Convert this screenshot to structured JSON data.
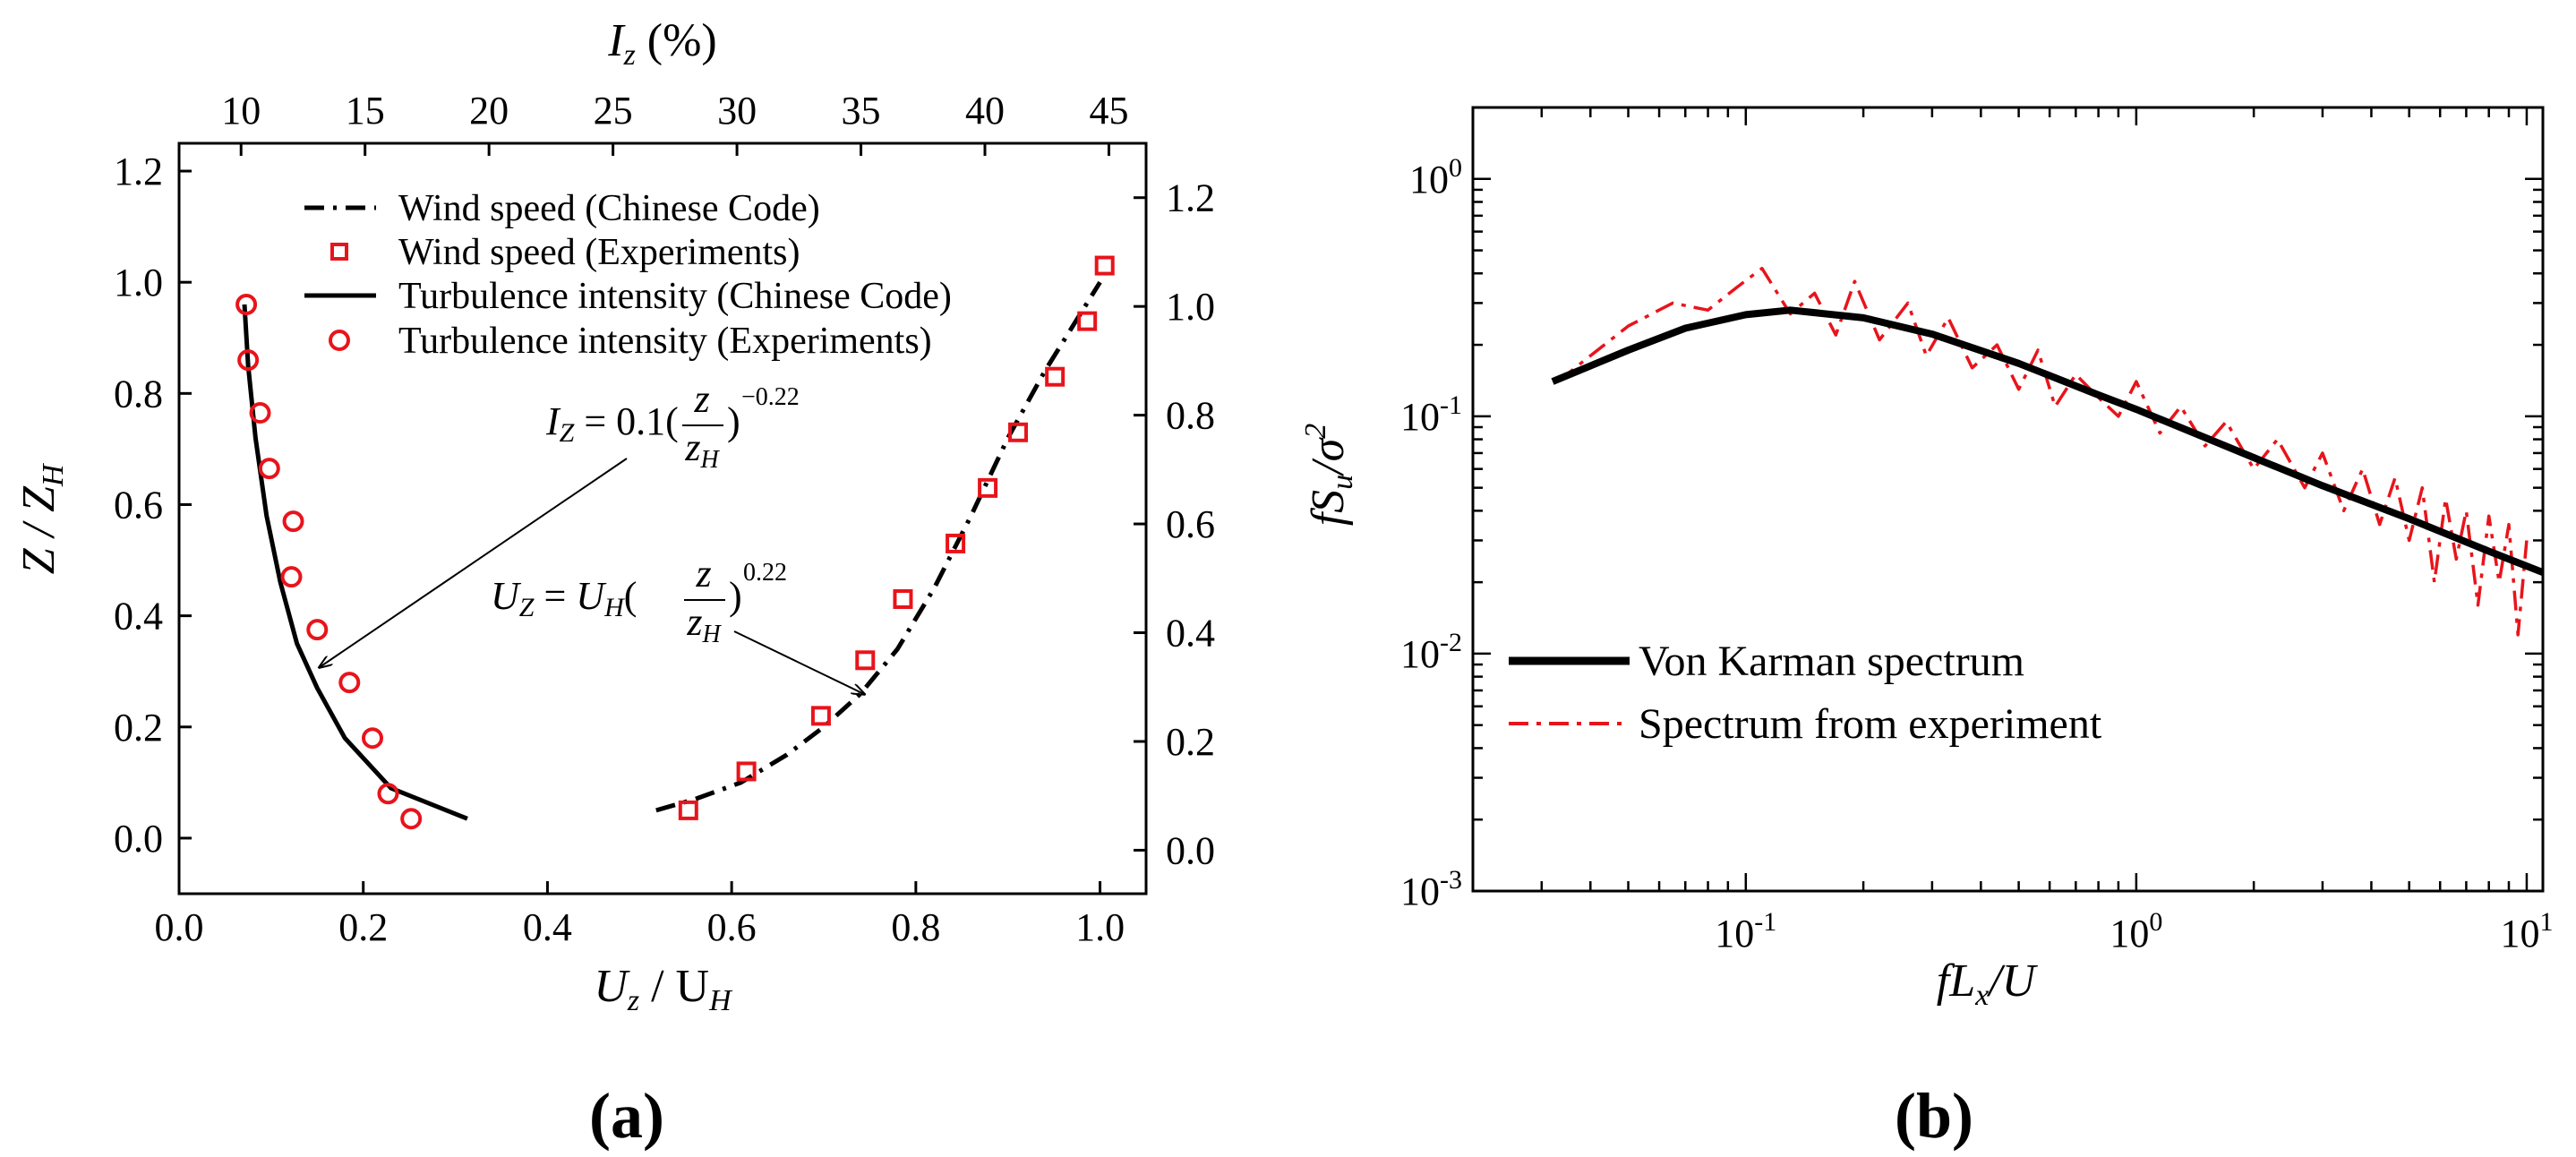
{
  "colors": {
    "black": "#000000",
    "red": "#e8141b",
    "background": "#ffffff"
  },
  "chart_data": [
    {
      "type": "line",
      "panel_label": "(a)",
      "xlabel": "U_z / U_H",
      "x2label": "I_z (%)",
      "ylabel": "Z / Z_H",
      "xlim": [
        0.0,
        1.05
      ],
      "ylim": [
        -0.1,
        1.25
      ],
      "x2lim": [
        7.5,
        46.5
      ],
      "y2lim": [
        -0.08,
        1.3
      ],
      "x_ticks": [
        "0.0",
        "0.2",
        "0.4",
        "0.6",
        "0.8",
        "1.0"
      ],
      "y_ticks": [
        "0.0",
        "0.2",
        "0.4",
        "0.6",
        "0.8",
        "1.0",
        "1.2"
      ],
      "x2_ticks": [
        "10",
        "15",
        "20",
        "25",
        "30",
        "35",
        "40",
        "45"
      ],
      "y2_ticks": [
        "0.0",
        "0.2",
        "0.4",
        "0.6",
        "0.8",
        "1.0",
        "1.2"
      ],
      "legend": {
        "position": "top-left",
        "entries": [
          "Wind speed (Chinese Code)",
          "Wind speed (Experiments)",
          "Turbulence intensity (Chinese Code)",
          "Turbulence intensity (Experiments)"
        ]
      },
      "series": [
        {
          "name": "Wind speed (Chinese Code)",
          "style": "dash-dot",
          "color": "#000000",
          "axes": "bottom-right",
          "x": [
            0.518,
            0.56,
            0.61,
            0.66,
            0.7,
            0.74,
            0.78,
            0.82,
            0.86,
            0.9,
            0.94,
            0.97,
            1.0
          ],
          "y": [
            0.05,
            0.07,
            0.1,
            0.15,
            0.2,
            0.26,
            0.34,
            0.45,
            0.58,
            0.72,
            0.84,
            0.92,
            1.0
          ]
        },
        {
          "name": "Wind speed (Experiments)",
          "style": "square",
          "color": "#e8141b",
          "axes": "bottom-right",
          "x": [
            0.553,
            0.616,
            0.697,
            0.745,
            0.786,
            0.843,
            0.878,
            0.911,
            0.951,
            0.986,
            1.005
          ],
          "y": [
            0.05,
            0.12,
            0.22,
            0.32,
            0.43,
            0.53,
            0.63,
            0.73,
            0.83,
            0.93,
            1.03
          ]
        },
        {
          "name": "Turbulence intensity (Chinese Code)",
          "style": "solid",
          "color": "#000000",
          "axes": "bottom-left",
          "x": [
            0.313,
            0.26,
            0.23,
            0.18,
            0.15,
            0.128,
            0.11,
            0.095,
            0.083,
            0.075,
            0.071
          ],
          "y": [
            0.035,
            0.07,
            0.09,
            0.18,
            0.27,
            0.35,
            0.46,
            0.58,
            0.72,
            0.85,
            0.96
          ]
        },
        {
          "name": "Turbulence intensity (Experiments)",
          "style": "circle",
          "color": "#e8141b",
          "axes": "bottom-left",
          "x": [
            0.252,
            0.227,
            0.21,
            0.185,
            0.15,
            0.122,
            0.124,
            0.098,
            0.088,
            0.075,
            0.073
          ],
          "y": [
            0.035,
            0.08,
            0.18,
            0.28,
            0.375,
            0.47,
            0.57,
            0.665,
            0.765,
            0.86,
            0.96
          ]
        }
      ],
      "annotations": [
        {
          "equation": "I_Z = 0.1(z/z_H)^-0.22",
          "points_to": "Turbulence intensity (Chinese Code)"
        },
        {
          "equation": "U_Z = U_H(z/z_H)^0.22",
          "points_to": "Wind speed (Chinese Code)"
        }
      ]
    },
    {
      "type": "line",
      "scale": "log-log",
      "panel_label": "(b)",
      "xlabel": "fL_x/U",
      "ylabel": "fS_u/σ²",
      "xlim": [
        0.02,
        11
      ],
      "ylim": [
        0.001,
        2
      ],
      "x_ticks": [
        "10^-1",
        "10^0",
        "10^1"
      ],
      "y_ticks": [
        "10^-3",
        "10^-2",
        "10^-1",
        "10^0"
      ],
      "legend": {
        "position": "bottom-left",
        "entries": [
          "Von Karman spectrum",
          "Spectrum from experiment"
        ]
      },
      "series": [
        {
          "name": "Von Karman spectrum",
          "style": "solid-thick",
          "color": "#000000",
          "x": [
            0.032,
            0.05,
            0.07,
            0.1,
            0.13,
            0.2,
            0.3,
            0.5,
            0.8,
            1.0,
            2.0,
            3.0,
            5.0,
            8.0,
            11.0
          ],
          "y": [
            0.14,
            0.19,
            0.235,
            0.268,
            0.28,
            0.26,
            0.222,
            0.167,
            0.123,
            0.107,
            0.067,
            0.051,
            0.037,
            0.027,
            0.022
          ]
        },
        {
          "name": "Spectrum from experiment",
          "style": "dash-dot",
          "color": "#e8141b",
          "x": [
            0.033,
            0.04,
            0.05,
            0.065,
            0.08,
            0.095,
            0.11,
            0.13,
            0.15,
            0.17,
            0.19,
            0.22,
            0.26,
            0.29,
            0.33,
            0.38,
            0.44,
            0.5,
            0.56,
            0.62,
            0.7,
            0.8,
            0.9,
            1.0,
            1.15,
            1.3,
            1.5,
            1.7,
            2.0,
            2.3,
            2.7,
            3.0,
            3.4,
            3.8,
            4.2,
            4.6,
            5.0,
            5.4,
            5.8,
            6.2,
            6.6,
            7.0,
            7.5,
            8.0,
            8.5,
            9.0,
            9.5,
            10.0
          ],
          "y": [
            0.14,
            0.18,
            0.24,
            0.3,
            0.28,
            0.35,
            0.42,
            0.27,
            0.33,
            0.22,
            0.37,
            0.21,
            0.3,
            0.18,
            0.26,
            0.16,
            0.2,
            0.13,
            0.19,
            0.11,
            0.15,
            0.12,
            0.1,
            0.14,
            0.085,
            0.11,
            0.075,
            0.095,
            0.06,
            0.08,
            0.05,
            0.07,
            0.04,
            0.06,
            0.035,
            0.055,
            0.03,
            0.05,
            0.02,
            0.045,
            0.025,
            0.04,
            0.016,
            0.038,
            0.02,
            0.035,
            0.012,
            0.03
          ]
        }
      ]
    }
  ]
}
